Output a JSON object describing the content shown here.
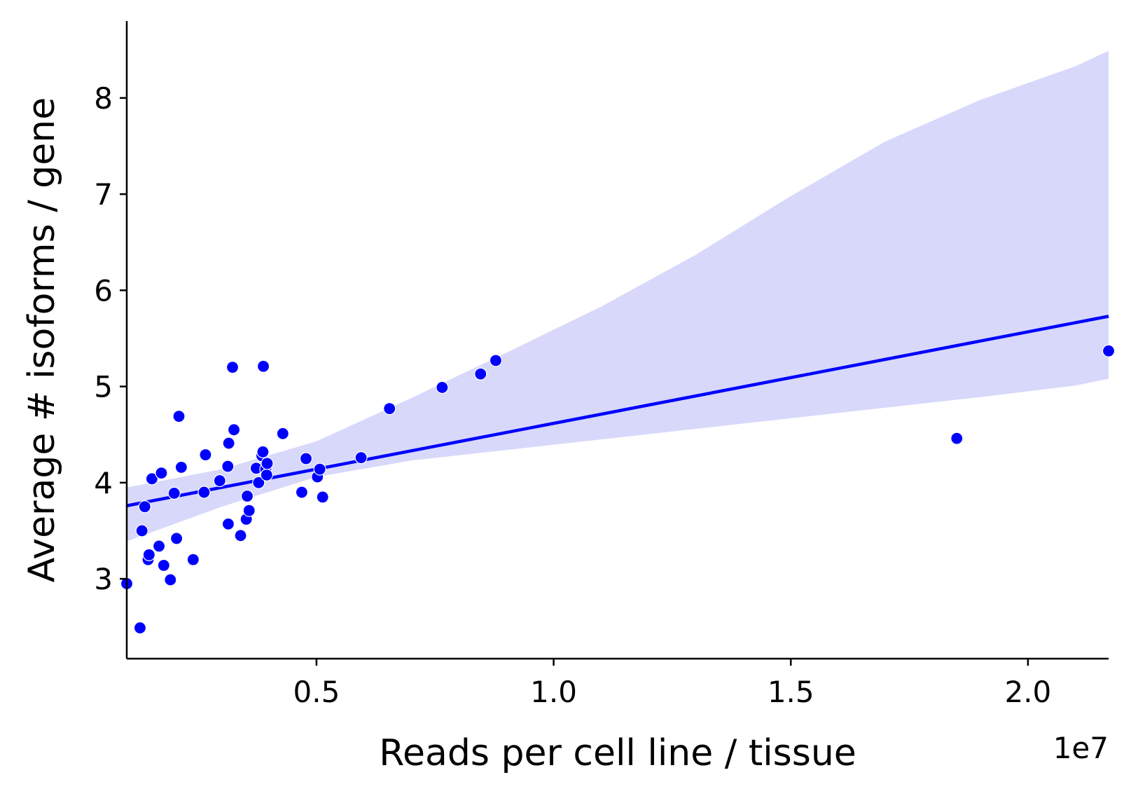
{
  "chart_data": {
    "type": "scatter",
    "xlabel": "Reads per cell line / tissue",
    "ylabel": "Average # isoforms / gene",
    "x_offset_label": "1e7",
    "xlim": [
      0.1,
      2.17
    ],
    "ylim": [
      2.17,
      8.8
    ],
    "xticks": [
      0.5,
      1.0,
      1.5,
      2.0
    ],
    "xtick_labels": [
      "0.5",
      "1.0",
      "1.5",
      "2.0"
    ],
    "yticks": [
      3,
      4,
      5,
      6,
      7,
      8
    ],
    "ytick_labels": [
      "3",
      "4",
      "5",
      "6",
      "7",
      "8"
    ],
    "grid": false,
    "colors": {
      "points": "#0000ff",
      "line": "#0000ff",
      "band": "#d8d8fb"
    },
    "points": [
      [
        0.1,
        2.95
      ],
      [
        0.128,
        2.49
      ],
      [
        0.132,
        3.5
      ],
      [
        0.138,
        3.75
      ],
      [
        0.145,
        3.2
      ],
      [
        0.147,
        3.25
      ],
      [
        0.153,
        4.04
      ],
      [
        0.168,
        3.34
      ],
      [
        0.173,
        4.1
      ],
      [
        0.178,
        3.14
      ],
      [
        0.192,
        2.99
      ],
      [
        0.2,
        3.89
      ],
      [
        0.205,
        3.42
      ],
      [
        0.21,
        4.69
      ],
      [
        0.215,
        4.16
      ],
      [
        0.24,
        3.2
      ],
      [
        0.263,
        3.9
      ],
      [
        0.266,
        4.29
      ],
      [
        0.296,
        4.02
      ],
      [
        0.313,
        4.17
      ],
      [
        0.314,
        3.57
      ],
      [
        0.315,
        4.41
      ],
      [
        0.323,
        5.2
      ],
      [
        0.326,
        4.55
      ],
      [
        0.34,
        3.45
      ],
      [
        0.352,
        3.62
      ],
      [
        0.354,
        3.86
      ],
      [
        0.358,
        3.71
      ],
      [
        0.373,
        4.15
      ],
      [
        0.378,
        4.0
      ],
      [
        0.385,
        4.28
      ],
      [
        0.387,
        4.32
      ],
      [
        0.388,
        5.21
      ],
      [
        0.393,
        4.14
      ],
      [
        0.395,
        4.08
      ],
      [
        0.396,
        4.2
      ],
      [
        0.429,
        4.51
      ],
      [
        0.469,
        3.9
      ],
      [
        0.478,
        4.25
      ],
      [
        0.502,
        4.06
      ],
      [
        0.507,
        4.14
      ],
      [
        0.513,
        3.85
      ],
      [
        0.594,
        4.26
      ],
      [
        0.654,
        4.77
      ],
      [
        0.765,
        4.99
      ],
      [
        0.846,
        5.13
      ],
      [
        0.878,
        5.27
      ],
      [
        1.85,
        4.46
      ],
      [
        2.17,
        5.37
      ]
    ],
    "regression": {
      "x": [
        0.1,
        2.17
      ],
      "y": [
        3.76,
        5.73
      ]
    },
    "confidence_band": {
      "x": [
        0.1,
        0.3,
        0.5,
        0.7,
        0.9,
        1.1,
        1.3,
        1.5,
        1.7,
        1.9,
        2.1,
        2.17
      ],
      "lower": [
        3.39,
        3.75,
        4.06,
        4.23,
        4.34,
        4.45,
        4.56,
        4.67,
        4.78,
        4.89,
        5.01,
        5.08
      ],
      "upper": [
        3.95,
        4.14,
        4.43,
        4.88,
        5.35,
        5.83,
        6.37,
        6.98,
        7.55,
        7.98,
        8.33,
        8.49
      ]
    }
  }
}
